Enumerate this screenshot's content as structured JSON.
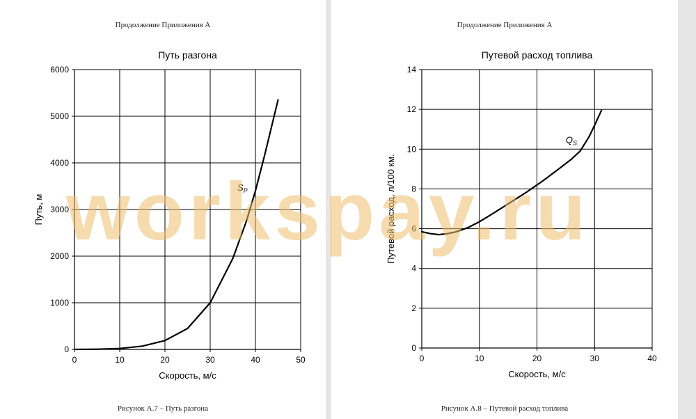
{
  "pages": [
    {
      "header": "Продолжение Приложения А",
      "caption": "Рисунок А.7 – Путь разгона"
    },
    {
      "header": "Продолжение Приложения А",
      "caption": "Рисунок А.8 – Путевой расход топлива"
    }
  ],
  "watermark": "workspay.ru",
  "chart_data": [
    {
      "type": "line",
      "title": "Путь разгона",
      "xlabel": "Скорость, м/с",
      "ylabel": "Путь, м",
      "xlim": [
        0,
        50
      ],
      "ylim": [
        0,
        6000
      ],
      "xticks": [
        0,
        10,
        20,
        30,
        40,
        50
      ],
      "yticks": [
        0,
        1000,
        2000,
        3000,
        4000,
        5000,
        6000
      ],
      "grid": true,
      "series": [
        {
          "label": "S",
          "label_sub": "P",
          "label_at": [
            36,
            3400
          ],
          "x": [
            0,
            5,
            10,
            15,
            20,
            25,
            30,
            35,
            38,
            40,
            42,
            44,
            45
          ],
          "y": [
            0,
            5,
            20,
            70,
            190,
            450,
            1000,
            1950,
            2750,
            3400,
            4150,
            4950,
            5350
          ]
        }
      ]
    },
    {
      "type": "line",
      "title": "Путевой расход топлива",
      "xlabel": "Скорость, м/с",
      "ylabel": "Путевой расход, л/100 км.",
      "xlim": [
        0,
        40
      ],
      "ylim": [
        0,
        14
      ],
      "xticks": [
        0,
        10,
        20,
        30,
        40
      ],
      "yticks": [
        0,
        2,
        4,
        6,
        8,
        10,
        12,
        14
      ],
      "grid": true,
      "series": [
        {
          "label": "Q",
          "label_sub": "S",
          "label_at": [
            25,
            10.3
          ],
          "x": [
            0,
            1.5,
            3,
            4.5,
            6,
            8,
            10,
            12,
            15,
            18,
            21,
            24,
            26,
            27.5,
            29,
            30,
            31.2
          ],
          "y": [
            5.85,
            5.75,
            5.7,
            5.75,
            5.85,
            6.05,
            6.35,
            6.7,
            7.25,
            7.8,
            8.4,
            9.05,
            9.5,
            9.9,
            10.6,
            11.2,
            11.95
          ]
        }
      ]
    }
  ]
}
